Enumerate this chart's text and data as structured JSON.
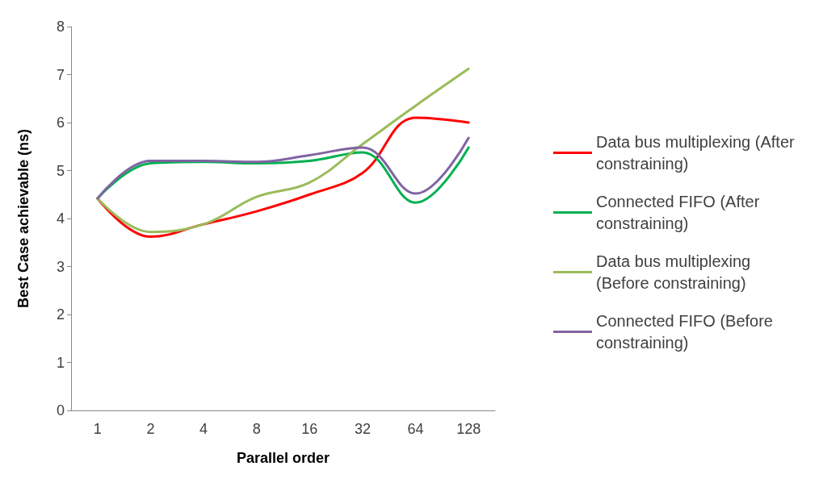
{
  "chart_data": {
    "type": "line",
    "xlabel": "Parallel order",
    "ylabel": "Best Case achievable (ns)",
    "categories": [
      "1",
      "2",
      "4",
      "8",
      "16",
      "32",
      "64",
      "128"
    ],
    "series": [
      {
        "name": "Data bus multiplexing (After constraining)",
        "color": "#ff0000",
        "values": [
          4.42,
          3.62,
          3.88,
          4.15,
          4.5,
          4.95,
          6.1,
          6.0
        ]
      },
      {
        "name": "Connected FIFO (After constraining)",
        "color": "#00b050",
        "values": [
          4.42,
          5.15,
          5.18,
          5.15,
          5.2,
          5.38,
          4.33,
          5.48
        ]
      },
      {
        "name": "Data bus multiplexing (Before constraining)",
        "color": "#9bbb59",
        "values": [
          4.42,
          3.72,
          3.88,
          4.45,
          4.75,
          5.55,
          6.35,
          7.12
        ]
      },
      {
        "name": "Connected FIFO (Before constraining)",
        "color": "#8064a2",
        "values": [
          4.42,
          5.2,
          5.2,
          5.18,
          5.32,
          5.48,
          4.52,
          5.68
        ]
      }
    ],
    "ylim": [
      0,
      8
    ],
    "yticks": [
      0,
      1,
      2,
      3,
      4,
      5,
      6,
      7,
      8
    ],
    "grid": false,
    "legend": "right",
    "marker": "none",
    "line_style": "solid"
  }
}
